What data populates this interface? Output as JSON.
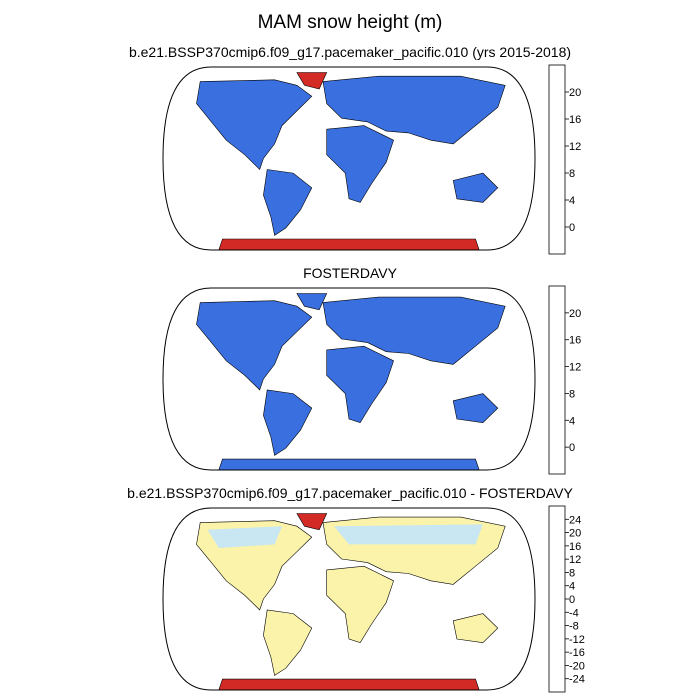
{
  "title": "MAM snow height (m)",
  "chart_data": [
    {
      "type": "heatmap",
      "subtitle": "b.e21.BSSP370cmip6.f09_g17.pacemaker_pacific.010 (yrs 2015-2018)",
      "colorbar": {
        "labels": [
          "0",
          "4",
          "8",
          "12",
          "16",
          "20"
        ],
        "colors": [
          "#3c1fe8",
          "#3a6fe0",
          "#1aaeea",
          "#c6e6f3",
          "#f6b400",
          "#f05a0e",
          "#d42a26"
        ]
      },
      "regions": {
        "land": "#3a6fe0",
        "greenland": "#d42a26",
        "antarctica": "#d42a26"
      }
    },
    {
      "type": "heatmap",
      "subtitle": "FOSTERDAVY",
      "colorbar": {
        "labels": [
          "0",
          "4",
          "8",
          "12",
          "16",
          "20"
        ],
        "colors": [
          "#3c1fe8",
          "#3a6fe0",
          "#1aaeea",
          "#c6e6f3",
          "#f6b400",
          "#f05a0e",
          "#d42a26"
        ]
      },
      "regions": {
        "land": "#3a6fe0",
        "greenland": "#3a6fe0",
        "antarctica": "#3a6fe0"
      }
    },
    {
      "type": "heatmap",
      "subtitle": "b.e21.BSSP370cmip6.f09_g17.pacemaker_pacific.010 - FOSTERDAVY",
      "colorbar": {
        "labels": [
          "24",
          "20",
          "16",
          "12",
          "8",
          "4",
          "0",
          "-4",
          "-8",
          "-12",
          "-16",
          "-20",
          "-24"
        ],
        "colors": [
          "#d42a26",
          "#ea3b1c",
          "#f46a10",
          "#f89a0a",
          "#fbbd14",
          "#fddc5a",
          "#fbf3a9",
          "#c9e6f3",
          "#a9d4f0",
          "#55b4ec",
          "#1c8fe6",
          "#2f58e2",
          "#3a2ee6",
          "#3217b8"
        ]
      },
      "regions": {
        "land": "#fbf3a9",
        "boreal": "#c9e6f3",
        "greenland": "#d42a26",
        "antarctica": "#d42a26"
      }
    }
  ]
}
